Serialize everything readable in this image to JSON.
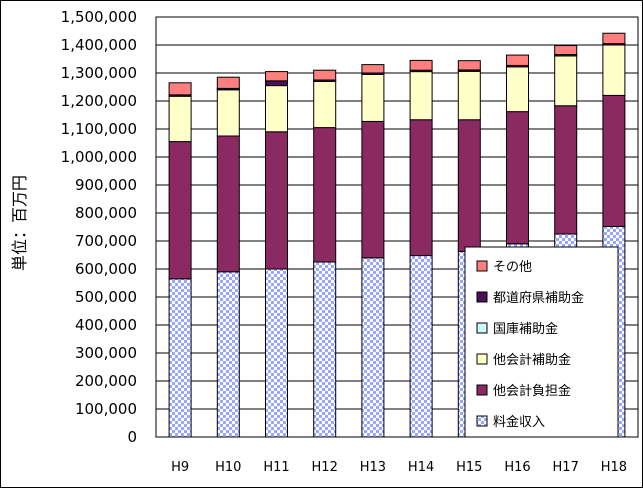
{
  "chart_data": {
    "type": "bar",
    "stacked": true,
    "categories": [
      "H9",
      "H10",
      "H11",
      "H12",
      "H13",
      "H14",
      "H15",
      "H16",
      "H17",
      "H18"
    ],
    "ylabel": "単位：百万円",
    "ylim": [
      0,
      1500000
    ],
    "yticks": [
      0,
      100000,
      200000,
      300000,
      400000,
      500000,
      600000,
      700000,
      800000,
      900000,
      1000000,
      1100000,
      1200000,
      1300000,
      1400000,
      1500000
    ],
    "ytick_labels": [
      "0",
      "100,000",
      "200,000",
      "300,000",
      "400,000",
      "500,000",
      "600,000",
      "700,000",
      "800,000",
      "900,000",
      "1,000,000",
      "1,100,000",
      "1,200,000",
      "1,300,000",
      "1,400,000",
      "1,500,000"
    ],
    "grid": true,
    "legend_position": "bottom-right (inside plot)",
    "series": [
      {
        "name": "料金収入",
        "color": "#9aa7ff",
        "pattern": "checker",
        "values": [
          565000,
          590000,
          600000,
          625000,
          640000,
          648000,
          663000,
          690000,
          725000,
          752000
        ]
      },
      {
        "name": "他会計負担金",
        "color": "#8b2a62",
        "values": [
          490000,
          485000,
          490000,
          480000,
          487000,
          485000,
          470000,
          472000,
          458000,
          468000
        ]
      },
      {
        "name": "他会計補助金",
        "color": "#ffffc8",
        "values": [
          162000,
          165000,
          165000,
          165000,
          168000,
          172000,
          173000,
          160000,
          178000,
          180000
        ]
      },
      {
        "name": "国庫補助金",
        "color": "#cdfafa",
        "values": [
          0,
          0,
          0,
          0,
          0,
          0,
          0,
          0,
          0,
          0
        ]
      },
      {
        "name": "都道府県補助金",
        "color": "#4a0f56",
        "values": [
          5000,
          5000,
          17000,
          5000,
          5000,
          5000,
          5000,
          5000,
          5000,
          5000
        ]
      },
      {
        "name": "その他",
        "color": "#ff7f7f",
        "values": [
          43000,
          40000,
          33000,
          35000,
          30000,
          35000,
          33000,
          37000,
          32000,
          37000
        ]
      }
    ],
    "legend_order": [
      "その他",
      "都道府県補助金",
      "国庫補助金",
      "他会計補助金",
      "他会計負担金",
      "料金収入"
    ]
  }
}
